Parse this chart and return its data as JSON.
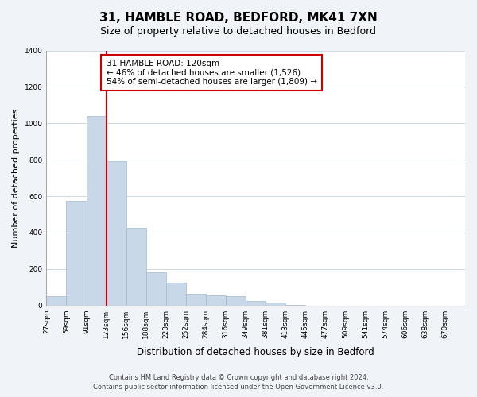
{
  "title_line1": "31, HAMBLE ROAD, BEDFORD, MK41 7XN",
  "title_line2": "Size of property relative to detached houses in Bedford",
  "xlabel": "Distribution of detached houses by size in Bedford",
  "ylabel": "Number of detached properties",
  "bin_labels": [
    "27sqm",
    "59sqm",
    "91sqm",
    "123sqm",
    "156sqm",
    "188sqm",
    "220sqm",
    "252sqm",
    "284sqm",
    "316sqm",
    "349sqm",
    "381sqm",
    "413sqm",
    "445sqm",
    "477sqm",
    "509sqm",
    "541sqm",
    "574sqm",
    "606sqm",
    "638sqm",
    "670sqm"
  ],
  "bar_values": [
    50,
    575,
    1042,
    790,
    425,
    180,
    125,
    65,
    55,
    50,
    25,
    15,
    5,
    0,
    0,
    0,
    0,
    0,
    0,
    0
  ],
  "bar_color": "#c8d8e8",
  "bar_edge_color": "#a0b8cc",
  "reference_line_x": 3,
  "reference_line_color": "#cc0000",
  "annotation_title": "31 HAMBLE ROAD: 120sqm",
  "annotation_line1": "← 46% of detached houses are smaller (1,526)",
  "annotation_line2": "54% of semi-detached houses are larger (1,809) →",
  "annotation_box_color": "#ffffff",
  "annotation_box_edge": "#cc0000",
  "ylim": [
    0,
    1400
  ],
  "yticks": [
    0,
    200,
    400,
    600,
    800,
    1000,
    1200,
    1400
  ],
  "footer_line1": "Contains HM Land Registry data © Crown copyright and database right 2024.",
  "footer_line2": "Contains public sector information licensed under the Open Government Licence v3.0.",
  "background_color": "#f0f4f8",
  "plot_bg_color": "#ffffff",
  "grid_color": "#d0d8e0"
}
